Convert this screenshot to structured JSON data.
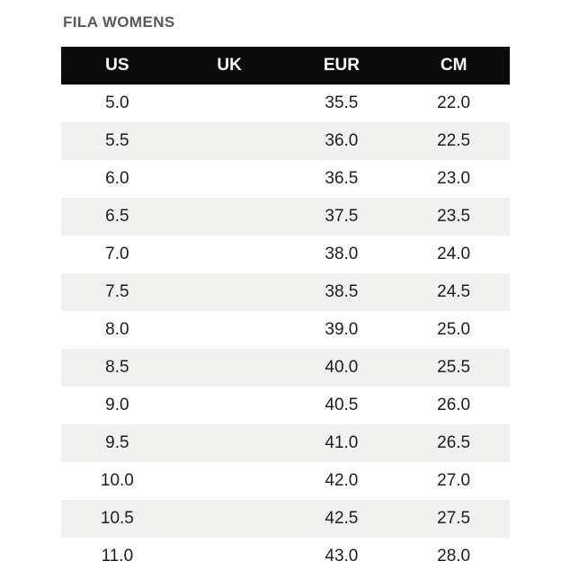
{
  "page": {
    "title": "FILA WOMENS"
  },
  "size_chart": {
    "columns": [
      {
        "key": "us",
        "label": "US"
      },
      {
        "key": "uk",
        "label": "UK"
      },
      {
        "key": "eur",
        "label": "EUR"
      },
      {
        "key": "cm",
        "label": "CM"
      }
    ],
    "rows": [
      {
        "us": "5.0",
        "uk": "",
        "eur": "35.5",
        "cm": "22.0"
      },
      {
        "us": "5.5",
        "uk": "",
        "eur": "36.0",
        "cm": "22.5"
      },
      {
        "us": "6.0",
        "uk": "",
        "eur": "36.5",
        "cm": "23.0"
      },
      {
        "us": "6.5",
        "uk": "",
        "eur": "37.5",
        "cm": "23.5"
      },
      {
        "us": "7.0",
        "uk": "",
        "eur": "38.0",
        "cm": "24.0"
      },
      {
        "us": "7.5",
        "uk": "",
        "eur": "38.5",
        "cm": "24.5"
      },
      {
        "us": "8.0",
        "uk": "",
        "eur": "39.0",
        "cm": "25.0"
      },
      {
        "us": "8.5",
        "uk": "",
        "eur": "40.0",
        "cm": "25.5"
      },
      {
        "us": "9.0",
        "uk": "",
        "eur": "40.5",
        "cm": "26.0"
      },
      {
        "us": "9.5",
        "uk": "",
        "eur": "41.0",
        "cm": "26.5"
      },
      {
        "us": "10.0",
        "uk": "",
        "eur": "42.0",
        "cm": "27.0"
      },
      {
        "us": "10.5",
        "uk": "",
        "eur": "42.5",
        "cm": "27.5"
      },
      {
        "us": "11.0",
        "uk": "",
        "eur": "43.0",
        "cm": "28.0"
      }
    ]
  },
  "colors": {
    "background": "#ffffff",
    "header_bg": "#0b0b0b",
    "header_text": "#ffffff",
    "row_stripe": "#f1f1f0",
    "title_text": "#58595b",
    "body_text": "#1d1d1d"
  }
}
